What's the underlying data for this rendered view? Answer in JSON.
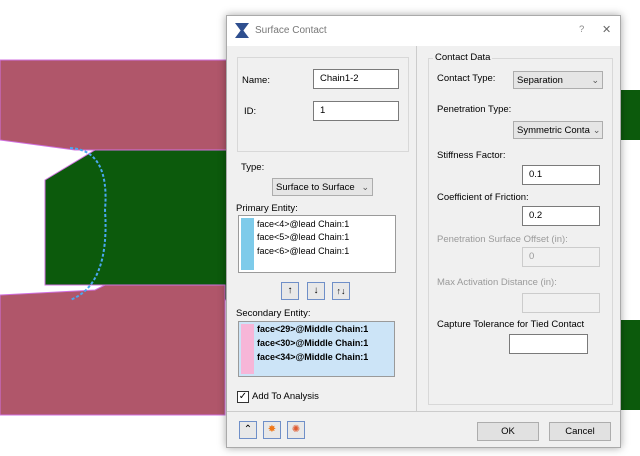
{
  "dialog": {
    "title": "Surface Contact",
    "help_label": "?",
    "close_label": "✕",
    "name_label": "Name:",
    "name_value": "Chain1-2",
    "id_label": "ID:",
    "id_value": "1",
    "type_label": "Type:",
    "type_value": "Surface to Surface",
    "primary_label": "Primary Entity:",
    "primary_items": [
      "face<4>@lead Chain:1",
      "face<5>@lead Chain:1",
      "face<6>@lead Chain:1"
    ],
    "primary_color": "#7ecbea",
    "arrow_buttons": [
      "↑",
      "↓",
      "↑↓"
    ],
    "secondary_label": "Secondary Entity:",
    "secondary_items": [
      "face<29>@Middle Chain:1",
      "face<30>@Middle Chain:1",
      "face<34>@Middle Chain:1"
    ],
    "secondary_color": "#f7b6d8",
    "add_to_analysis_label": "Add To Analysis",
    "add_to_analysis_checked": true,
    "contact_data": {
      "group_label": "Contact Data",
      "contact_type_label": "Contact Type:",
      "contact_type_value": "Separation",
      "penetration_type_label": "Penetration Type:",
      "penetration_type_value": "Symmetric Conta",
      "stiffness_label": "Stiffness Factor:",
      "stiffness_value": "0.1",
      "friction_label": "Coefficient of Friction:",
      "friction_value": "0.2",
      "pen_offset_label": "Penetration Surface Offset (in):",
      "pen_offset_value": "0",
      "max_activation_label": "Max Activation Distance (in):",
      "max_activation_value": "",
      "capture_label": "Capture Tolerance for Tied Contact",
      "capture_value": ""
    },
    "ok_label": "OK",
    "cancel_label": "Cancel"
  }
}
